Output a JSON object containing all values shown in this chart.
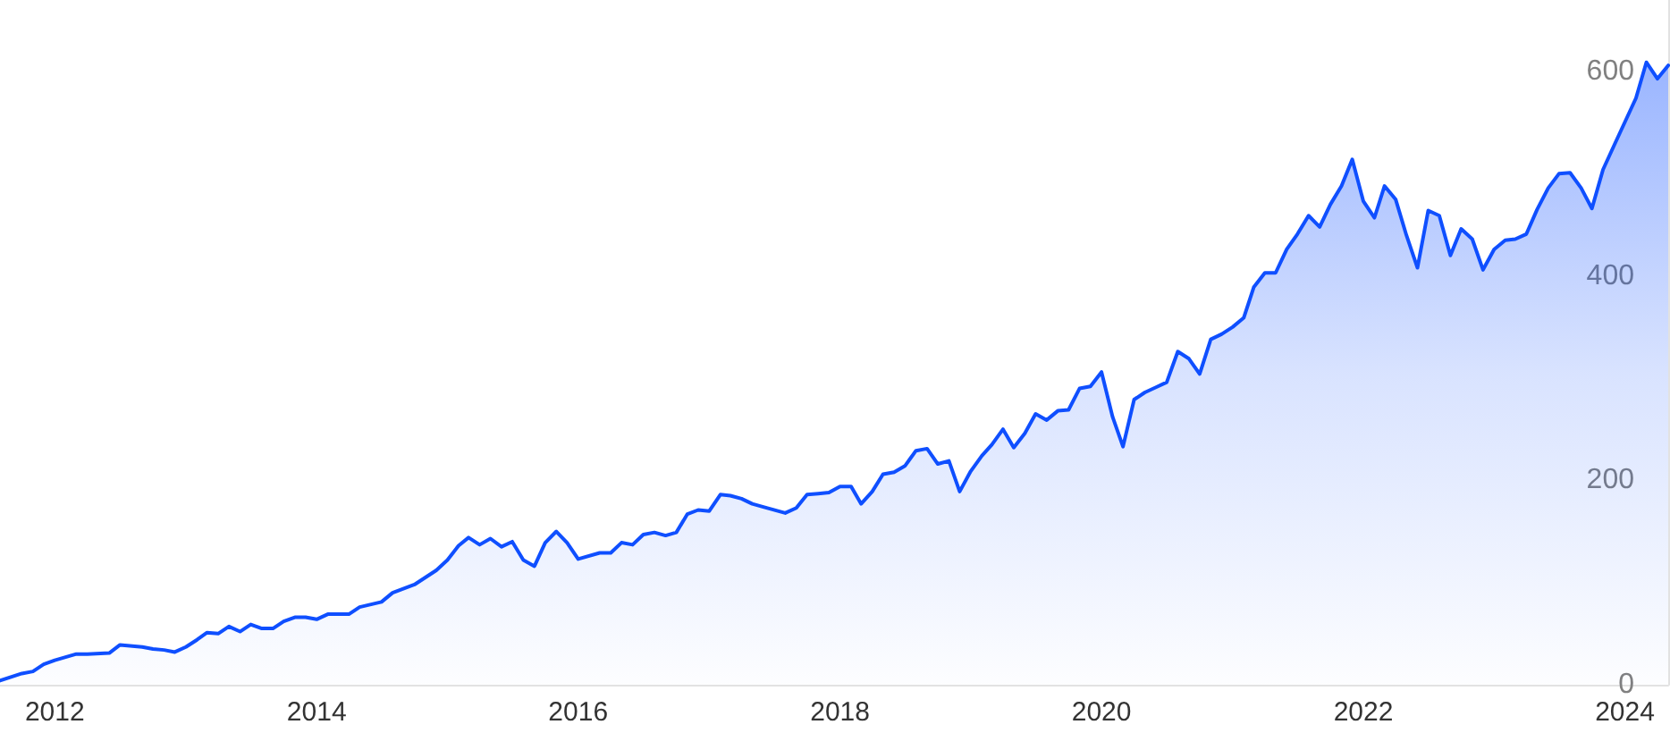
{
  "chart_data": {
    "type": "area",
    "x": [
      "2011-08",
      "2011-10",
      "2011-11",
      "2011-12",
      "2012-01",
      "2012-03",
      "2012-04",
      "2012-06",
      "2012-07",
      "2012-09",
      "2012-10",
      "2012-11",
      "2012-12",
      "2013-01",
      "2013-02",
      "2013-03",
      "2013-04",
      "2013-05",
      "2013-06",
      "2013-07",
      "2013-08",
      "2013-09",
      "2013-10",
      "2013-11",
      "2013-12",
      "2014-01",
      "2014-02",
      "2014-04",
      "2014-05",
      "2014-07",
      "2014-08",
      "2014-10",
      "2014-12",
      "2015-01",
      "2015-02",
      "2015-03",
      "2015-04",
      "2015-05",
      "2015-06",
      "2015-07",
      "2015-08",
      "2015-09",
      "2015-10",
      "2015-11",
      "2015-12",
      "2016-01",
      "2016-03",
      "2016-04",
      "2016-05",
      "2016-06",
      "2016-07",
      "2016-08",
      "2016-09",
      "2016-10",
      "2016-11",
      "2016-12",
      "2017-01",
      "2017-02",
      "2017-03",
      "2017-04",
      "2017-05",
      "2017-06",
      "2017-08",
      "2017-09",
      "2017-10",
      "2017-11",
      "2017-12",
      "2018-01",
      "2018-02",
      "2018-03",
      "2018-04",
      "2018-05",
      "2018-06",
      "2018-07",
      "2018-08",
      "2018-09",
      "2018-10",
      "2018-11",
      "2018-12",
      "2019-01",
      "2019-02",
      "2019-03",
      "2019-04",
      "2019-05",
      "2019-06",
      "2019-07",
      "2019-08",
      "2019-09",
      "2019-10",
      "2019-11",
      "2019-12",
      "2020-01",
      "2020-02",
      "2020-03",
      "2020-04",
      "2020-05",
      "2020-06",
      "2020-07",
      "2020-08",
      "2020-09",
      "2020-10",
      "2020-11",
      "2020-12",
      "2021-01",
      "2021-02",
      "2021-03",
      "2021-04",
      "2021-05",
      "2021-06",
      "2021-07",
      "2021-08",
      "2021-09",
      "2021-10",
      "2021-11",
      "2021-12",
      "2022-01",
      "2022-02",
      "2022-03",
      "2022-04",
      "2022-05",
      "2022-06",
      "2022-07",
      "2022-08",
      "2022-09",
      "2022-10",
      "2022-11",
      "2022-12",
      "2023-01",
      "2023-02",
      "2023-03",
      "2023-04",
      "2023-05",
      "2023-06",
      "2023-07",
      "2023-08",
      "2023-09",
      "2023-10",
      "2023-11",
      "2023-12",
      "2024-02",
      "2024-03",
      "2024-04",
      "2024-05"
    ],
    "values": [
      4,
      11,
      13,
      20,
      24,
      30,
      30,
      31,
      39,
      37,
      35,
      34,
      32,
      37,
      44,
      51,
      50,
      57,
      52,
      59,
      55,
      55,
      62,
      66,
      66,
      64,
      69,
      69,
      76,
      81,
      90,
      98,
      112,
      122,
      136,
      144,
      137,
      143,
      135,
      140,
      122,
      116,
      139,
      150,
      139,
      123,
      129,
      129,
      139,
      137,
      147,
      149,
      146,
      149,
      167,
      171,
      170,
      186,
      185,
      182,
      177,
      174,
      168,
      173,
      186,
      187,
      188,
      194,
      194,
      177,
      189,
      206,
      208,
      214,
      229,
      231,
      216,
      219,
      189,
      209,
      224,
      235,
      250,
      232,
      246,
      265,
      259,
      268,
      269,
      290,
      292,
      306,
      262,
      233,
      279,
      286,
      291,
      296,
      326,
      319,
      304,
      338,
      343,
      350,
      359,
      389,
      403,
      403,
      426,
      441,
      459,
      448,
      470,
      488,
      514,
      473,
      457,
      488,
      475,
      440,
      408,
      464,
      459,
      420,
      446,
      436,
      406,
      426,
      435,
      436,
      441,
      465,
      486,
      500,
      501,
      486,
      466,
      504,
      527,
      574,
      609,
      593,
      606
    ],
    "color": "#0f4fff",
    "xlim": [
      "2011-08",
      "2024-05"
    ],
    "xticks": [
      "2012",
      "2014",
      "2016",
      "2018",
      "2020",
      "2022",
      "2024"
    ],
    "ylim": [
      0,
      670
    ],
    "yticks": [
      0,
      200,
      400,
      600
    ],
    "grid": false,
    "marker": "none",
    "line_style": "solid"
  }
}
